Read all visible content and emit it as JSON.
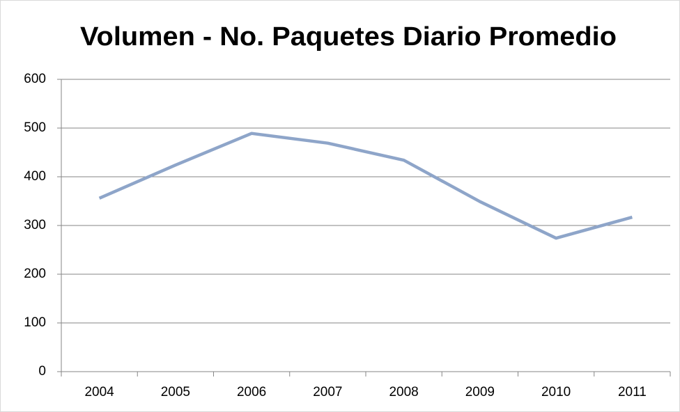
{
  "chart_data": {
    "type": "line",
    "title": "Volumen - No. Paquetes Diario Promedio",
    "categories": [
      "2004",
      "2005",
      "2006",
      "2007",
      "2008",
      "2009",
      "2010",
      "2011"
    ],
    "values": [
      356,
      424,
      489,
      469,
      434,
      349,
      274,
      317
    ],
    "color": "#8ea5c9",
    "ylim": [
      0,
      600
    ],
    "yticks": [
      0,
      100,
      200,
      300,
      400,
      500,
      600
    ],
    "grid": true
  }
}
